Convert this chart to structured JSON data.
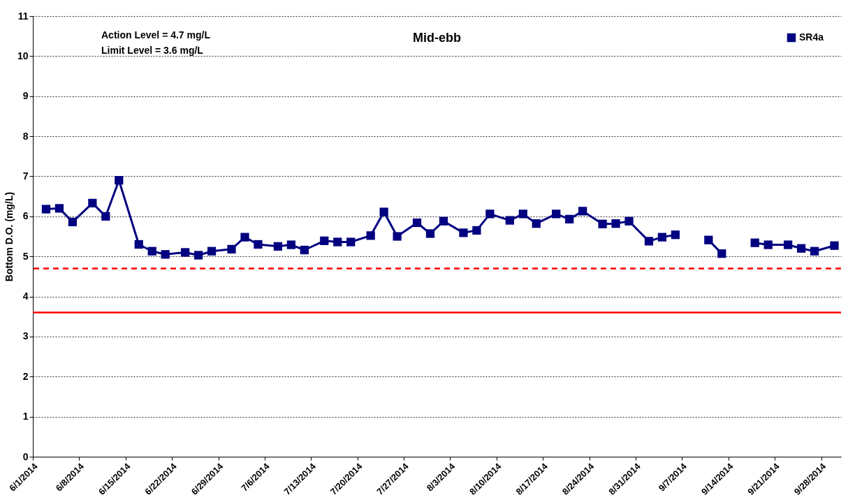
{
  "chart_data": {
    "type": "line",
    "title": "Mid-ebb",
    "ylabel": "Bottom D.O. (mg/L)",
    "x": [
      "2014-06-03",
      "2014-06-05",
      "2014-06-07",
      "2014-06-10",
      "2014-06-12",
      "2014-06-14",
      "2014-06-17",
      "2014-06-19",
      "2014-06-21",
      "2014-06-24",
      "2014-06-26",
      "2014-06-28",
      "2014-07-01",
      "2014-07-03",
      "2014-07-05",
      "2014-07-08",
      "2014-07-10",
      "2014-07-12",
      "2014-07-15",
      "2014-07-17",
      "2014-07-19",
      "2014-07-22",
      "2014-07-24",
      "2014-07-26",
      "2014-07-29",
      "2014-07-31",
      "2014-08-02",
      "2014-08-05",
      "2014-08-07",
      "2014-08-09",
      "2014-08-12",
      "2014-08-14",
      "2014-08-16",
      "2014-08-19",
      "2014-08-21",
      "2014-08-23",
      "2014-08-26",
      "2014-08-28",
      "2014-08-30",
      "2014-09-02",
      "2014-09-04",
      "2014-09-06",
      "2014-09-09",
      "2014-09-11",
      "2014-09-13",
      "2014-09-16",
      "2014-09-18",
      "2014-09-20",
      "2014-09-23",
      "2014-09-25",
      "2014-09-27",
      "2014-09-30"
    ],
    "series": [
      {
        "name": "SR4a",
        "color": "#000080",
        "values": [
          6.18,
          6.2,
          5.86,
          6.33,
          6.0,
          6.9,
          5.3,
          5.13,
          5.05,
          5.1,
          5.03,
          5.13,
          5.18,
          5.48,
          5.3,
          5.25,
          5.29,
          5.16,
          5.39,
          5.36,
          5.36,
          5.52,
          6.11,
          5.5,
          5.84,
          5.57,
          5.88,
          5.59,
          5.65,
          6.06,
          5.9,
          6.06,
          5.82,
          6.06,
          5.93,
          6.13,
          5.81,
          5.82,
          5.88,
          5.38,
          5.48,
          5.54,
          null,
          5.41,
          5.07,
          null,
          5.34,
          5.29,
          5.29,
          5.2,
          5.13,
          5.27
        ]
      }
    ],
    "xlim": [
      "2014-06-01",
      "2014-10-01"
    ],
    "xticks": [
      {
        "value": "2014-06-01",
        "label": "6/1/2014"
      },
      {
        "value": "2014-06-08",
        "label": "6/8/2014"
      },
      {
        "value": "2014-06-15",
        "label": "6/15/2014"
      },
      {
        "value": "2014-06-22",
        "label": "6/22/2014"
      },
      {
        "value": "2014-06-29",
        "label": "6/29/2014"
      },
      {
        "value": "2014-07-06",
        "label": "7/6/2014"
      },
      {
        "value": "2014-07-13",
        "label": "7/13/2014"
      },
      {
        "value": "2014-07-20",
        "label": "7/20/2014"
      },
      {
        "value": "2014-07-27",
        "label": "7/27/2014"
      },
      {
        "value": "2014-08-03",
        "label": "8/3/2014"
      },
      {
        "value": "2014-08-10",
        "label": "8/10/2014"
      },
      {
        "value": "2014-08-17",
        "label": "8/17/2014"
      },
      {
        "value": "2014-08-24",
        "label": "8/24/2014"
      },
      {
        "value": "2014-08-31",
        "label": "8/31/2014"
      },
      {
        "value": "2014-09-07",
        "label": "9/7/2014"
      },
      {
        "value": "2014-09-14",
        "label": "9/14/2014"
      },
      {
        "value": "2014-09-21",
        "label": "9/21/2014"
      },
      {
        "value": "2014-09-28",
        "label": "9/28/2014"
      }
    ],
    "ylim": [
      0,
      11
    ],
    "yticks": [
      0,
      1,
      2,
      3,
      4,
      5,
      6,
      7,
      8,
      9,
      10,
      11
    ],
    "ref_lines": [
      {
        "axis": "y",
        "value": 4.7,
        "color": "#ff0000",
        "line_style": "dashed"
      },
      {
        "axis": "y",
        "value": 3.6,
        "color": "#ff0000",
        "line_style": "solid"
      }
    ],
    "annotations": [
      "Action Level = 4.7 mg/L",
      "Limit Level = 3.6 mg/L"
    ],
    "grid": "y",
    "legend": "top right",
    "marker": "square",
    "line_style": "solid"
  }
}
